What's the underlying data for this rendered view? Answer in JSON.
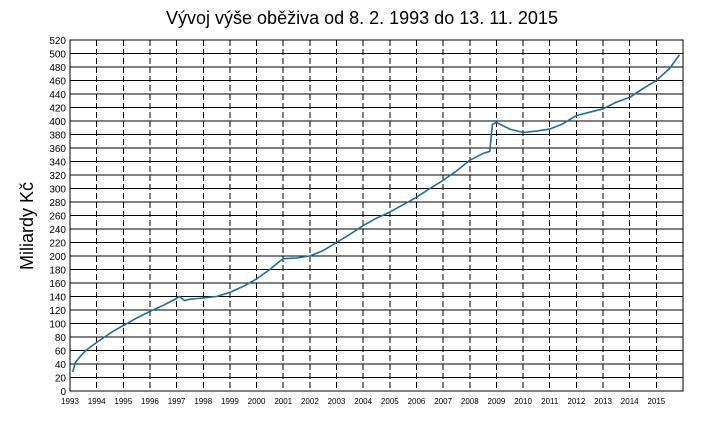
{
  "chart_data": {
    "type": "line",
    "title": "Vývoj výše oběživa od 8. 2. 1993 do 13. 11. 2015",
    "xlabel": "",
    "ylabel": "Miliardy Kč",
    "xlim": [
      1993,
      2016
    ],
    "ylim": [
      0,
      520
    ],
    "y_ticks": [
      0,
      20,
      40,
      60,
      80,
      100,
      120,
      140,
      160,
      180,
      200,
      220,
      240,
      260,
      280,
      300,
      320,
      340,
      360,
      380,
      400,
      420,
      440,
      460,
      480,
      500,
      520
    ],
    "x_ticks": [
      "1993",
      "1994",
      "1995",
      "1996",
      "1997",
      "1998",
      "1999",
      "2000",
      "2001",
      "2002",
      "2003",
      "2004",
      "2005",
      "2006",
      "2007",
      "2008",
      "2009",
      "2010",
      "2011",
      "2012",
      "2013",
      "2014",
      "2015"
    ],
    "grid": true,
    "series": [
      {
        "color": "#1f6ea0",
        "x": [
          1993.1,
          1993.2,
          1993.4,
          1993.6,
          1993.8,
          1994.0,
          1994.3,
          1994.6,
          1995.0,
          1995.5,
          1996.0,
          1996.5,
          1996.9,
          1997.1,
          1997.3,
          1997.5,
          1997.8,
          1998.0,
          1998.5,
          1999.0,
          1999.5,
          2000.0,
          2000.5,
          2000.8,
          2001.0,
          2001.5,
          2002.0,
          2002.5,
          2003.0,
          2003.5,
          2004.0,
          2004.5,
          2005.0,
          2005.5,
          2006.0,
          2006.5,
          2007.0,
          2007.5,
          2008.0,
          2008.5,
          2008.75,
          2008.85,
          2009.0,
          2009.5,
          2010.0,
          2010.5,
          2011.0,
          2011.5,
          2012.0,
          2012.5,
          2013.0,
          2013.5,
          2014.0,
          2014.5,
          2015.0,
          2015.5,
          2015.87
        ],
        "y": [
          28,
          42,
          52,
          60,
          66,
          72,
          80,
          88,
          97,
          108,
          118,
          127,
          135,
          140,
          134,
          136,
          137,
          138,
          140,
          146,
          155,
          166,
          180,
          190,
          196,
          197,
          200,
          208,
          220,
          232,
          245,
          256,
          265,
          276,
          287,
          300,
          312,
          326,
          342,
          352,
          355,
          395,
          398,
          388,
          383,
          385,
          388,
          396,
          408,
          413,
          418,
          428,
          435,
          448,
          460,
          478,
          498
        ]
      }
    ]
  }
}
